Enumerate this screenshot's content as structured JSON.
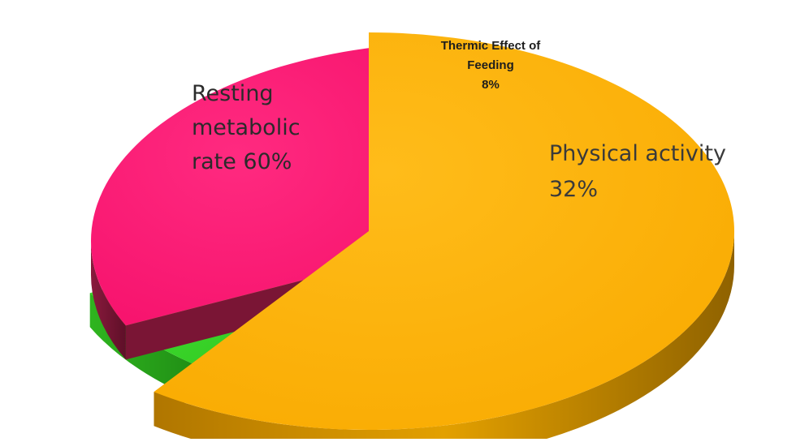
{
  "chart_data": {
    "type": "pie",
    "title": "",
    "slices": [
      {
        "label_lines": [
          "Resting",
          "metabolic",
          "rate 60%"
        ],
        "value": 60,
        "color": "#FFB300",
        "side_color": "#C98A00"
      },
      {
        "label_lines": [
          "Thermic Effect of",
          "Feeding",
          "8%"
        ],
        "value": 8,
        "color": "#3DDB2A",
        "side_color": "#28A51B"
      },
      {
        "label_lines": [
          "Physical activity",
          "32%"
        ],
        "value": 32,
        "color": "#FF1A75",
        "side_color": "#7A1535"
      }
    ],
    "legend": "none",
    "style": "3d-exploded"
  }
}
